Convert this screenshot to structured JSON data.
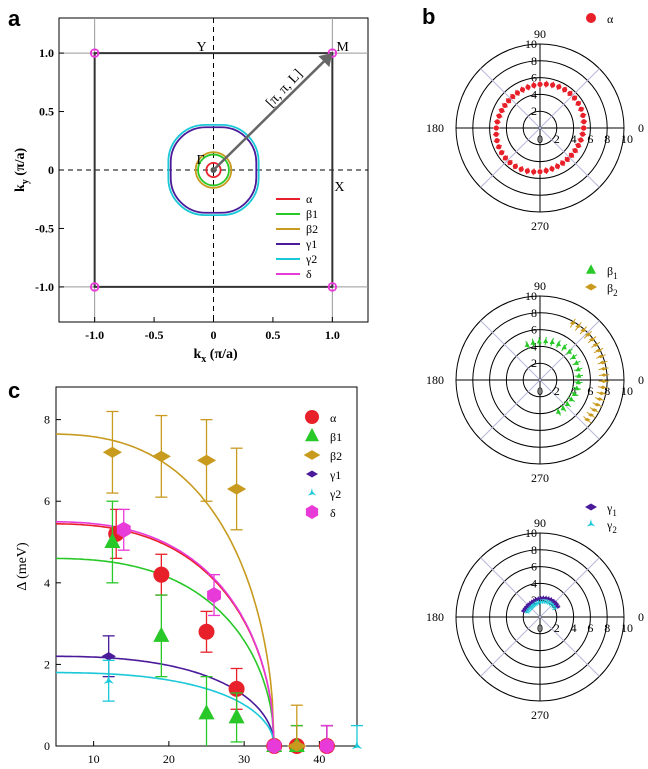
{
  "panel_labels": {
    "a": "a",
    "b": "b",
    "c": "c"
  },
  "chart_data": [
    {
      "type": "scatter",
      "panel": "a",
      "xlabel_main": "k",
      "xlabel_sub": "x",
      "xlabel_unit": "(π/a)",
      "ylabel_main": "k",
      "ylabel_sub": "y",
      "ylabel_unit": "(π/a)",
      "xlim": [
        -1.3,
        1.3
      ],
      "ylim": [
        -1.3,
        1.3
      ],
      "xticks": [
        "-1.0",
        "-0.5",
        "0",
        "0.5",
        "1.0"
      ],
      "yticks": [
        "1.0",
        "0.5",
        "0",
        "-0.5",
        "-1.0"
      ],
      "annotations": {
        "Y": "Y",
        "M": "M",
        "X": "X",
        "Gamma": "Γ",
        "vector": "[π, π, L]"
      },
      "zone_boundary": [
        [
          -1,
          -1
        ],
        [
          1,
          -1
        ],
        [
          1,
          1
        ],
        [
          -1,
          1
        ]
      ],
      "series": [
        {
          "name": "α",
          "color": "#e8202a",
          "radius": 0.06
        },
        {
          "name": "β1",
          "color": "#28c828",
          "radius": 0.13
        },
        {
          "name": "β2",
          "color": "#c89a1e",
          "radius": 0.15
        },
        {
          "name": "γ1",
          "color": "#4a1a9a",
          "radius": 0.36
        },
        {
          "name": "γ2",
          "color": "#1ac8d8",
          "radius": 0.38
        },
        {
          "name": "δ",
          "color": "#e83ad8",
          "radius": 0.03
        }
      ]
    },
    {
      "type": "scatter",
      "panel": "b",
      "polar": true,
      "angle_labels": [
        "90",
        "180",
        "0",
        "270"
      ],
      "radial_ticks_top": [
        "10",
        "8",
        "6",
        "4",
        "2"
      ],
      "radial_ticks_right": [
        "0",
        "2",
        "4",
        "6",
        "8",
        "10"
      ],
      "rmax": 10,
      "subplots": [
        {
          "legend": [
            {
              "name": "α",
              "sub": "",
              "color": "#e8202a",
              "marker": "circle"
            }
          ],
          "series": [
            {
              "name": "α",
              "color": "#e8202a",
              "r": 5.2,
              "err": 0.4
            }
          ]
        },
        {
          "legend": [
            {
              "name": "β",
              "sub": "1",
              "color": "#28c828",
              "marker": "triangle"
            },
            {
              "name": "β",
              "sub": "2",
              "color": "#c89a1e",
              "marker": "diamond"
            }
          ],
          "series": [
            {
              "name": "β1",
              "color": "#28c828",
              "r": 4.6,
              "err": 0.5,
              "from": -60,
              "to": 110
            },
            {
              "name": "β2",
              "color": "#c89a1e",
              "r": 7.6,
              "err": 0.6,
              "from": -40,
              "to": 60
            }
          ]
        },
        {
          "legend": [
            {
              "name": "γ",
              "sub": "1",
              "color": "#4a1a9a",
              "marker": "diamond"
            },
            {
              "name": "γ",
              "sub": "2",
              "color": "#1ac8d8",
              "marker": "star"
            }
          ],
          "series": [
            {
              "name": "γ1",
              "color": "#4a1a9a",
              "r": 2.2,
              "err": 0.3,
              "from": 30,
              "to": 160
            },
            {
              "name": "γ2",
              "color": "#1ac8d8",
              "r": 1.8,
              "err": 0.3,
              "from": 30,
              "to": 160
            }
          ]
        }
      ]
    },
    {
      "type": "scatter",
      "panel": "c",
      "xlabel": "T (K)",
      "ylabel": "Δ (meV)",
      "xlim": [
        5,
        45
      ],
      "ylim": [
        0,
        8.8
      ],
      "xticks": [
        10,
        20,
        30,
        40
      ],
      "yticks": [
        0,
        2,
        4,
        6,
        8
      ],
      "Tc": 34,
      "series": [
        {
          "name": "α",
          "color": "#e8202a",
          "marker": "circle",
          "gap0": 5.45,
          "x": [
            13,
            19,
            25,
            29,
            34,
            37,
            41
          ],
          "y": [
            5.2,
            4.2,
            2.8,
            1.4,
            0,
            0,
            0
          ],
          "err": [
            0.6,
            0.5,
            0.5,
            0.5,
            0.0,
            0.5,
            0.5
          ]
        },
        {
          "name": "β1",
          "color": "#28c828",
          "marker": "triangle",
          "gap0": 4.6,
          "x": [
            12.5,
            19,
            25,
            29,
            34,
            37
          ],
          "y": [
            5.0,
            2.7,
            0.8,
            0.7,
            0,
            0
          ],
          "err": [
            1.0,
            1.0,
            0.9,
            0.6,
            0.0,
            0.5
          ]
        },
        {
          "name": "β2",
          "color": "#c89a1e",
          "marker": "diamond",
          "gap0": 7.65,
          "x": [
            12.5,
            19,
            25,
            29,
            37
          ],
          "y": [
            7.2,
            7.1,
            7.0,
            6.3,
            0
          ],
          "err": [
            1.0,
            1.0,
            1.0,
            1.0,
            1.0
          ]
        },
        {
          "name": "γ1",
          "color": "#4a1a9a",
          "marker": "diamond",
          "gap0": 2.2,
          "x": [
            12,
            41
          ],
          "y": [
            2.2,
            0
          ],
          "err": [
            0.5,
            0.5
          ]
        },
        {
          "name": "γ2",
          "color": "#1ac8d8",
          "marker": "star",
          "gap0": 1.8,
          "x": [
            12,
            45
          ],
          "y": [
            1.6,
            0
          ],
          "err": [
            0.5,
            0.5
          ]
        },
        {
          "name": "δ",
          "color": "#e83ad8",
          "marker": "hexagon",
          "gap0": 5.5,
          "x": [
            14,
            26,
            34,
            41
          ],
          "y": [
            5.3,
            3.7,
            0,
            0
          ],
          "err": [
            0.5,
            0.5,
            0.0,
            0.5
          ]
        }
      ]
    }
  ]
}
